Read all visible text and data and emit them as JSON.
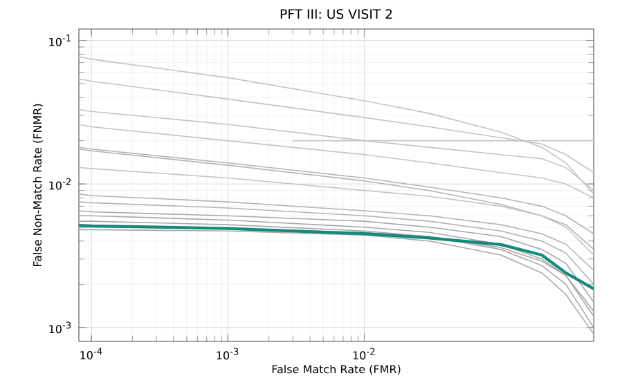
{
  "chart_data": {
    "type": "line",
    "title": "PFT III: US VISIT 2",
    "xlabel": "False Match Rate (FMR)",
    "ylabel": "False Non-Match Rate (FNMR)",
    "log": "xy",
    "grid": true,
    "xlim": [
      8.1e-05,
      0.48
    ],
    "ylim": [
      0.0008,
      0.12
    ],
    "xticks": [
      {
        "value": 0.0001,
        "label": "10$^{-4}$"
      },
      {
        "value": 0.001,
        "label": "10$^{-3}$"
      },
      {
        "value": 0.01,
        "label": "10$^{-2}$"
      }
    ],
    "yticks": [
      {
        "value": 0.001,
        "label": "10$^{-3}$"
      },
      {
        "value": 0.01,
        "label": "10$^{-2}$"
      },
      {
        "value": 0.1,
        "label": "10$^{-1}$"
      }
    ],
    "x": [
      8.1e-05,
      0.0001,
      0.001,
      0.01,
      0.03,
      0.1,
      0.2,
      0.3,
      0.48
    ],
    "series": [
      {
        "color": "#c4c4c4",
        "values": [
          0.077,
          0.074,
          0.055,
          0.038,
          0.031,
          0.023,
          0.018,
          0.014,
          0.0085
        ]
      },
      {
        "color": "#c4c4c4",
        "values": [
          0.054,
          0.052,
          0.039,
          0.029,
          0.025,
          0.021,
          0.019,
          0.016,
          0.012
        ]
      },
      {
        "color": "#c4c4c4",
        "x": [
          0.003,
          0.48
        ],
        "values": [
          0.02,
          0.02
        ]
      },
      {
        "color": "#c4c4c4",
        "values": [
          0.033,
          0.032,
          0.026,
          0.02,
          0.018,
          0.016,
          0.015,
          0.013,
          0.009
        ]
      },
      {
        "color": "#c4c4c4",
        "values": [
          0.026,
          0.025,
          0.02,
          0.016,
          0.014,
          0.012,
          0.011,
          0.01,
          0.008
        ]
      },
      {
        "color": "#b4b4b4",
        "values": [
          0.018,
          0.0175,
          0.014,
          0.011,
          0.0095,
          0.008,
          0.007,
          0.006,
          0.0045
        ]
      },
      {
        "color": "#b4b4b4",
        "values": [
          0.0175,
          0.017,
          0.0135,
          0.0105,
          0.009,
          0.0072,
          0.006,
          0.0052,
          0.0035
        ]
      },
      {
        "color": "#c4c4c4",
        "values": [
          0.013,
          0.0128,
          0.011,
          0.009,
          0.0082,
          0.007,
          0.006,
          0.005,
          0.0032
        ]
      },
      {
        "color": "#b4b4b4",
        "values": [
          0.0085,
          0.0083,
          0.0075,
          0.0065,
          0.006,
          0.0052,
          0.0045,
          0.0038,
          0.0025
        ]
      },
      {
        "color": "#b4b4b4",
        "values": [
          0.0075,
          0.0074,
          0.0068,
          0.006,
          0.0055,
          0.0047,
          0.004,
          0.0033,
          0.002
        ]
      },
      {
        "color": "#a8a8a8",
        "values": [
          0.0065,
          0.0064,
          0.006,
          0.0055,
          0.005,
          0.0043,
          0.0035,
          0.0028,
          0.0015
        ]
      },
      {
        "color": "#a8a8a8",
        "values": [
          0.006,
          0.006,
          0.0056,
          0.005,
          0.0046,
          0.0038,
          0.003,
          0.0023,
          0.0012
        ]
      },
      {
        "color": "#a8a8a8",
        "values": [
          0.0055,
          0.0055,
          0.0052,
          0.0047,
          0.0043,
          0.0035,
          0.0027,
          0.002,
          0.001
        ]
      },
      {
        "color": "#a8a8a8",
        "values": [
          0.0048,
          0.0048,
          0.0047,
          0.0044,
          0.004,
          0.0032,
          0.0024,
          0.0017,
          0.0009
        ]
      },
      {
        "color": "#a8a8a8",
        "values": [
          0.005,
          0.005,
          0.0049,
          0.0046,
          0.0043,
          0.0036,
          0.0029,
          0.0023,
          0.0013
        ]
      },
      {
        "color": "#138a7a",
        "values": [
          0.00515,
          0.0051,
          0.0049,
          0.0045,
          0.0042,
          0.00378,
          0.0032,
          0.0024,
          0.00186
        ]
      }
    ]
  }
}
